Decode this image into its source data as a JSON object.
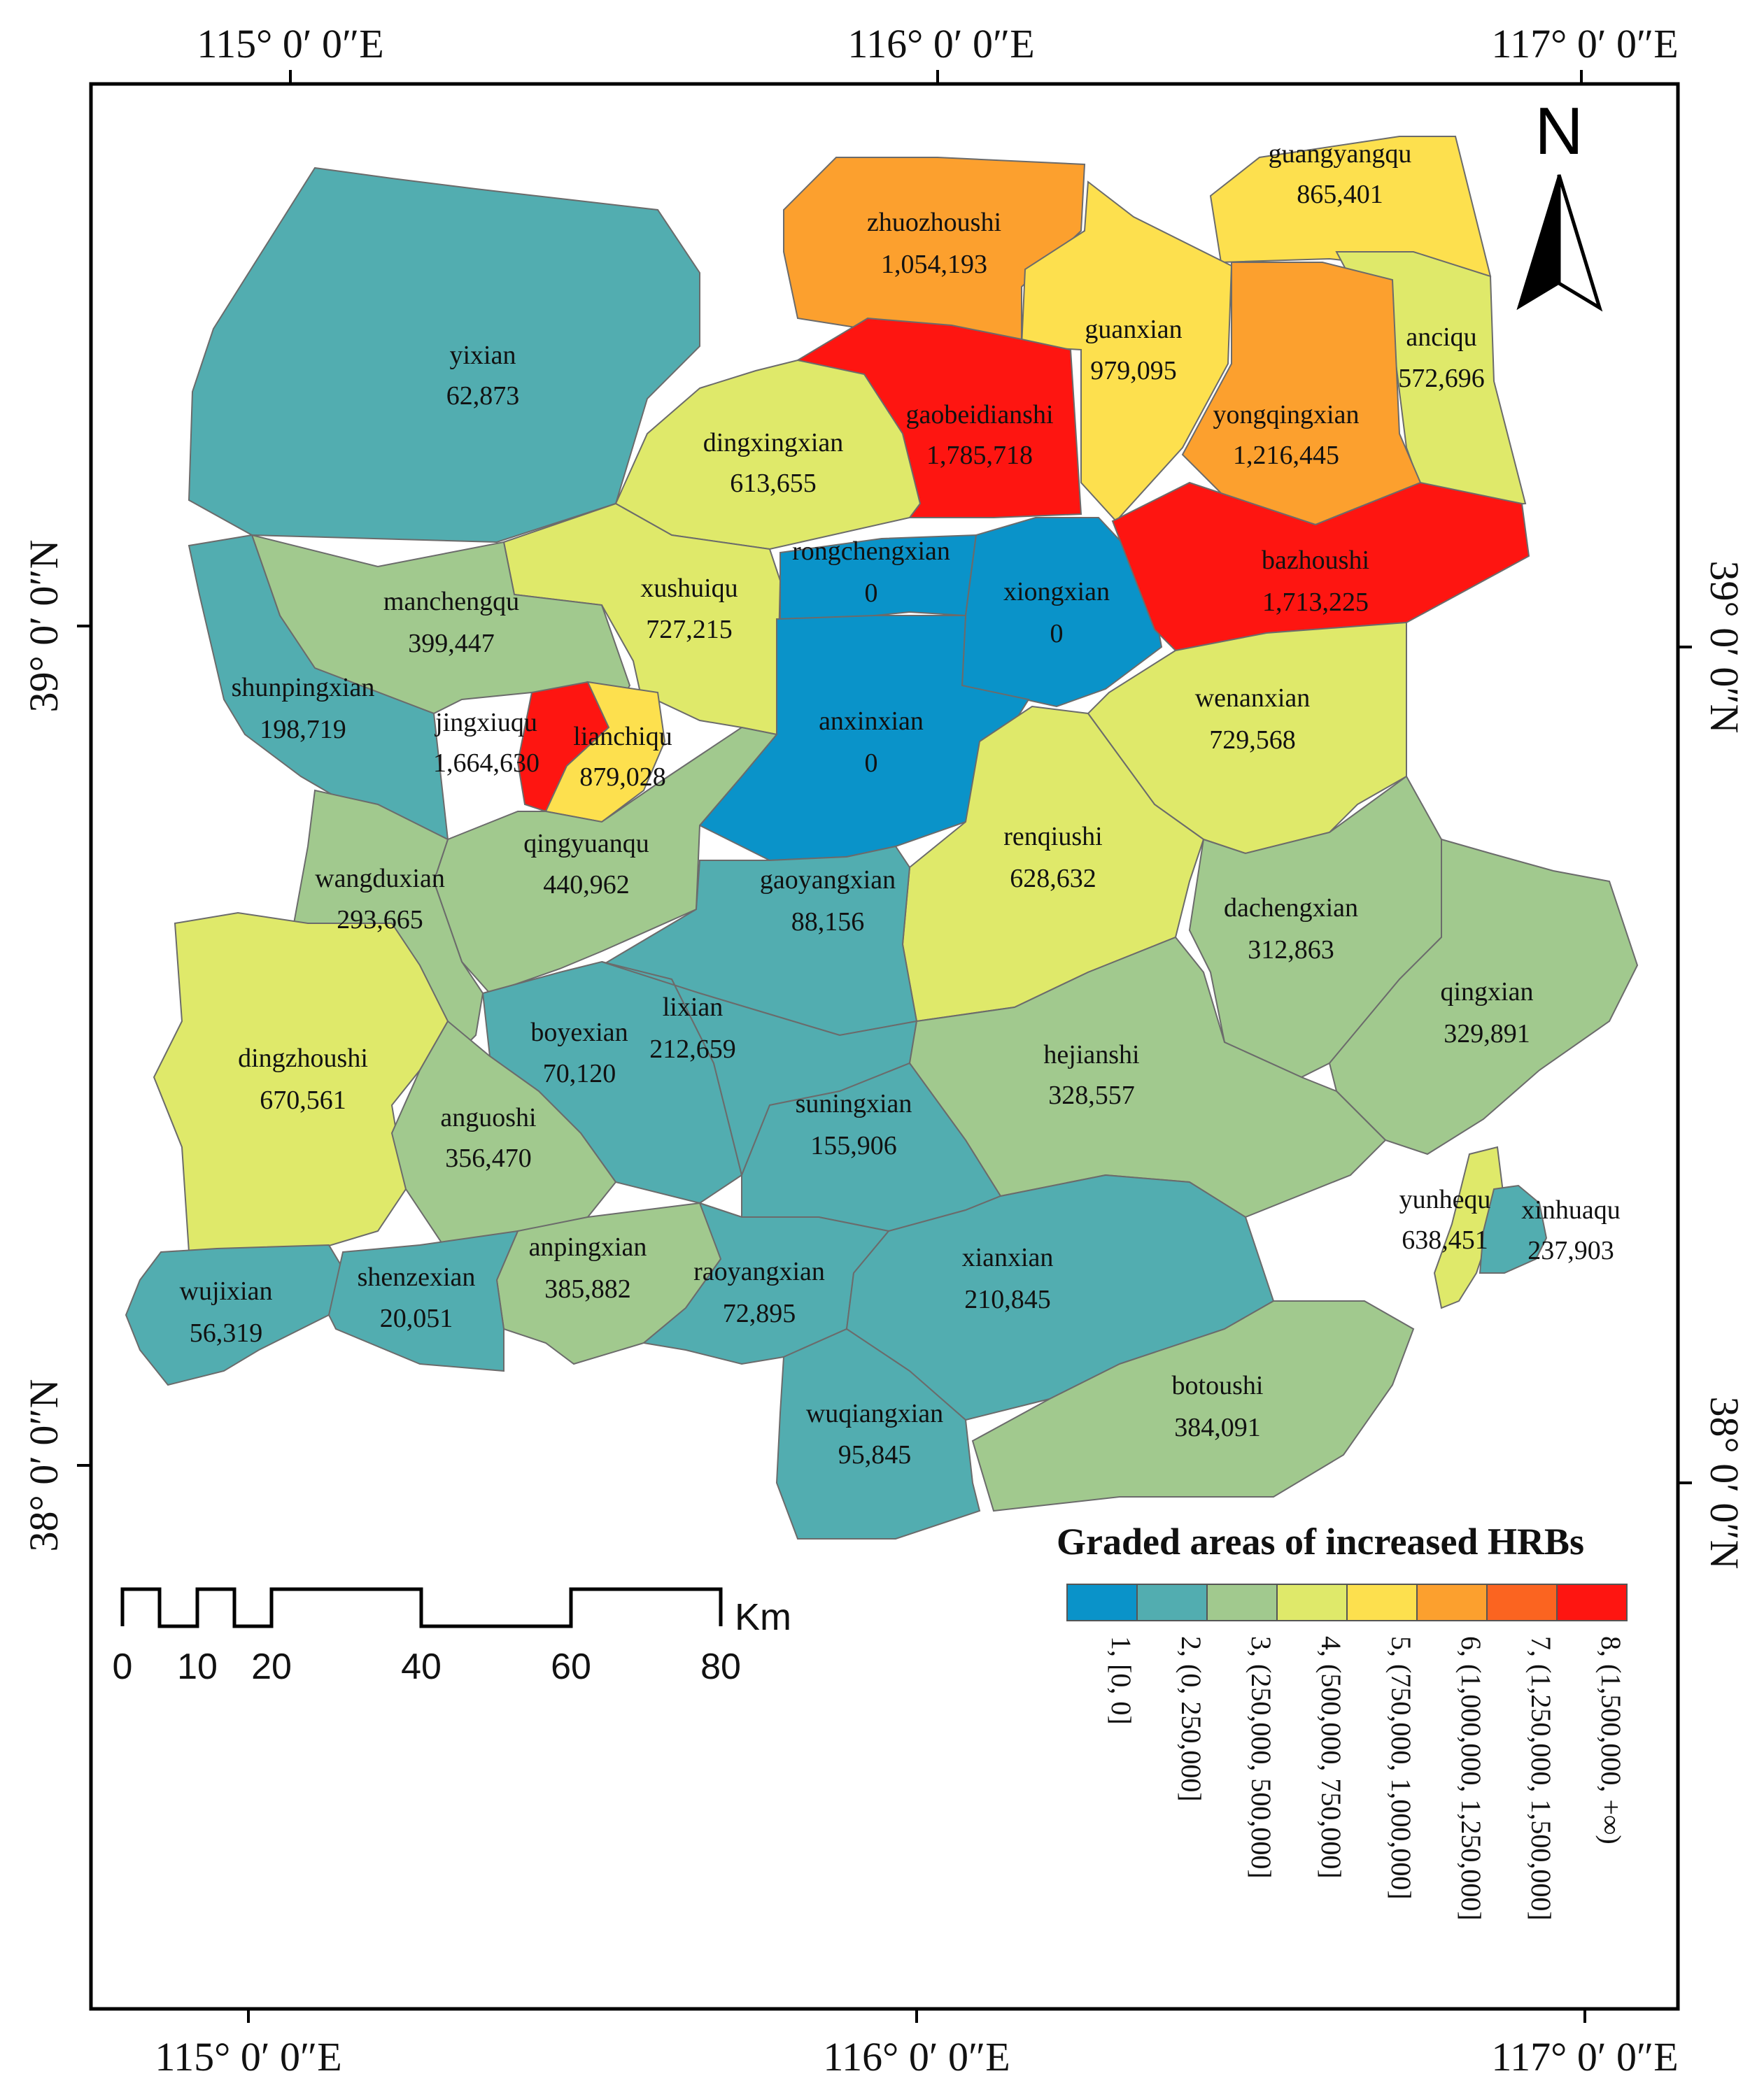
{
  "coords": {
    "top": [
      "115° 0′ 0″E",
      "116° 0′ 0″E",
      "117° 0′ 0″E"
    ],
    "bottom": [
      "115° 0′ 0″E",
      "116° 0′ 0″E",
      "117° 0′ 0″E"
    ],
    "left": [
      "39° 0′ 0″N",
      "38° 0′ 0″N"
    ],
    "right": [
      "39° 0′ 0″N",
      "38° 0′ 0″N"
    ]
  },
  "north_label": "N",
  "legend": {
    "title": "Graded areas of increased HRBs",
    "classes": [
      {
        "label": "1, [0, 0]",
        "color": "#0a93c9"
      },
      {
        "label": "2, (0, 250,000]",
        "color": "#52adb0"
      },
      {
        "label": "3, (250,000, 500,000]",
        "color": "#a1c98e"
      },
      {
        "label": "4, (500,000, 750,000]",
        "color": "#dfe96a"
      },
      {
        "label": "5, (750,000, 1,000,000]",
        "color": "#fde04e"
      },
      {
        "label": "6, (1,000,000, 1,250,000]",
        "color": "#fca02e"
      },
      {
        "label": "7, (1,250,000, 1,500,000]",
        "color": "#fb6420"
      },
      {
        "label": "8, (1,500,000, +∞)",
        "color": "#fe1511"
      }
    ]
  },
  "scale_bar": {
    "unit": "Km",
    "ticks": [
      "0",
      "10",
      "20",
      "40",
      "60",
      "80"
    ]
  },
  "regions": {
    "yixian": {
      "name": "yixian",
      "value": "62,873"
    },
    "zhuozhoushi": {
      "name": "zhuozhoushi",
      "value": "1,054,193"
    },
    "guangyangqu": {
      "name": "guangyangqu",
      "value": "865,401"
    },
    "guanxian": {
      "name": "guanxian",
      "value": "979,095"
    },
    "anciqu": {
      "name": "anciqu",
      "value": "572,696"
    },
    "gaobeidianshi": {
      "name": "gaobeidianshi",
      "value": "1,785,718"
    },
    "yongqingxian": {
      "name": "yongqingxian",
      "value": "1,216,445"
    },
    "dingxingxian": {
      "name": "dingxingxian",
      "value": "613,655"
    },
    "rongchengxian": {
      "name": "rongchengxian",
      "value": "0"
    },
    "xiongxian": {
      "name": "xiongxian",
      "value": "0"
    },
    "bazhoushi": {
      "name": "bazhoushi",
      "value": "1,713,225"
    },
    "xushuiqu": {
      "name": "xushuiqu",
      "value": "727,215"
    },
    "manchengqu": {
      "name": "manchengqu",
      "value": "399,447"
    },
    "shunpingxian": {
      "name": "shunpingxian",
      "value": "198,719"
    },
    "jingxiuqu": {
      "name": "jingxiuqu",
      "value": "1,664,630"
    },
    "lianchiqu": {
      "name": "lianchiqu",
      "value": "879,028"
    },
    "anxinxian": {
      "name": "anxinxian",
      "value": "0"
    },
    "wenanxian": {
      "name": "wenanxian",
      "value": "729,568"
    },
    "qingyuanqu": {
      "name": "qingyuanqu",
      "value": "440,962"
    },
    "wangduxian": {
      "name": "wangduxian",
      "value": "293,665"
    },
    "renqiushi": {
      "name": "renqiushi",
      "value": "628,632"
    },
    "gaoyangxian": {
      "name": "gaoyangxian",
      "value": "88,156"
    },
    "dachengxian": {
      "name": "dachengxian",
      "value": "312,863"
    },
    "qingxian": {
      "name": "qingxian",
      "value": "329,891"
    },
    "dingzhoushi": {
      "name": "dingzhoushi",
      "value": "670,561"
    },
    "boyexian": {
      "name": "boyexian",
      "value": "70,120"
    },
    "lixian": {
      "name": "lixian",
      "value": "212,659"
    },
    "hejianshi": {
      "name": "hejianshi",
      "value": "328,557"
    },
    "anguoshi": {
      "name": "anguoshi",
      "value": "356,470"
    },
    "suningxian": {
      "name": "suningxian",
      "value": "155,906"
    },
    "yunhequ": {
      "name": "yunhequ",
      "value": "638,451"
    },
    "xinhuaqu": {
      "name": "xinhuaqu",
      "value": "237,903"
    },
    "anpingxian": {
      "name": "anpingxian",
      "value": "385,882"
    },
    "wujixian": {
      "name": "wujixian",
      "value": "56,319"
    },
    "shenzexian": {
      "name": "shenzexian",
      "value": "20,051"
    },
    "raoyangxian": {
      "name": "raoyangxian",
      "value": "72,895"
    },
    "xianxian": {
      "name": "xianxian",
      "value": "210,845"
    },
    "botoushi": {
      "name": "botoushi",
      "value": "384,091"
    },
    "wuqiangxian": {
      "name": "wuqiangxian",
      "value": "95,845"
    }
  }
}
